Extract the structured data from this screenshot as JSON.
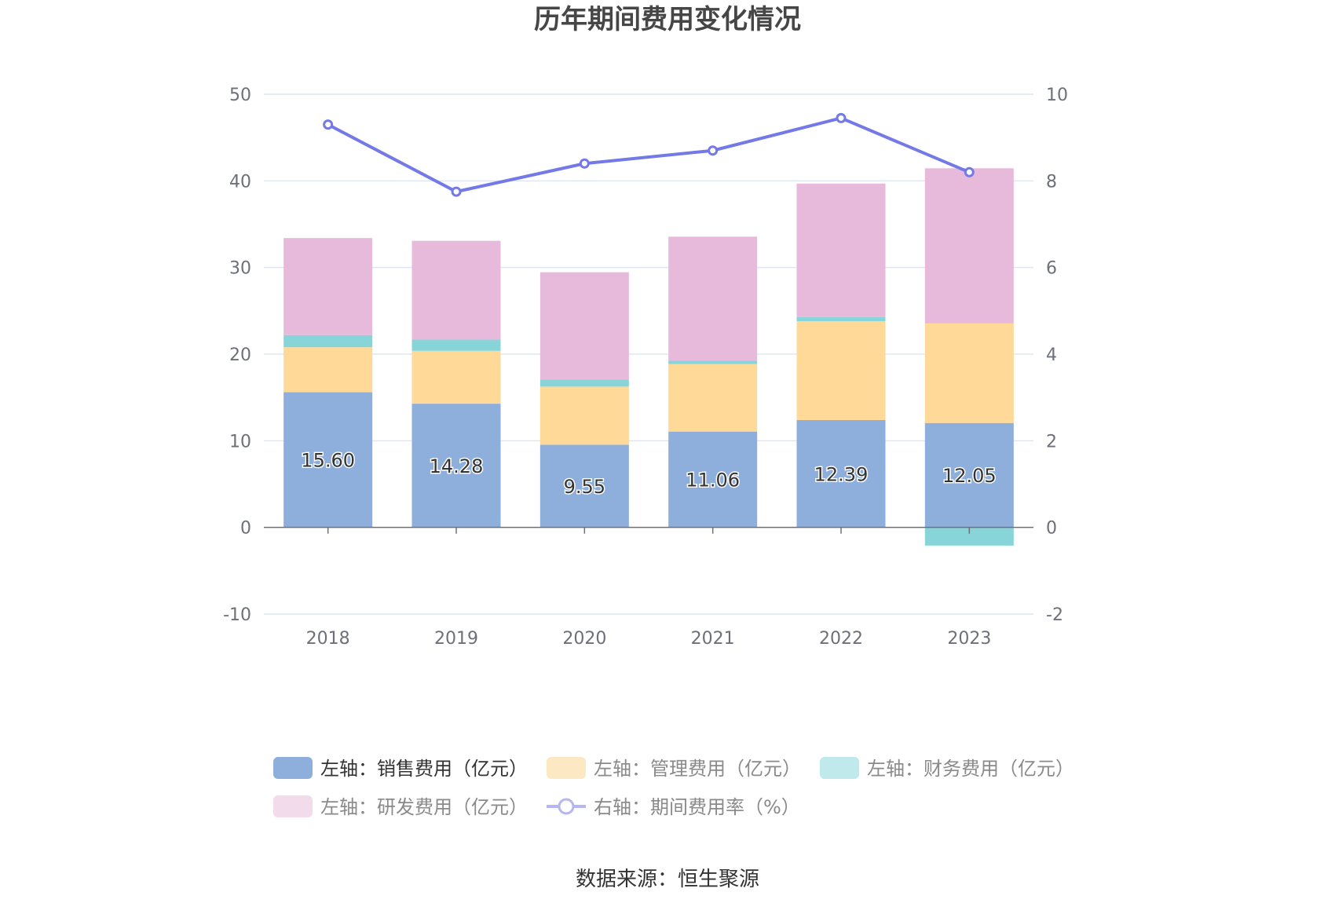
{
  "chart_data": {
    "type": "bar",
    "title": "历年期间费用变化情况",
    "categories": [
      "2018",
      "2019",
      "2020",
      "2021",
      "2022",
      "2023"
    ],
    "stacked": true,
    "left_axis": {
      "ylim": [
        -10,
        50
      ],
      "ticks": [
        "50",
        "40",
        "30",
        "20",
        "10",
        "0",
        "-10"
      ]
    },
    "right_axis": {
      "ylim": [
        -2,
        10
      ],
      "ticks": [
        "10",
        "8",
        "6",
        "4",
        "2",
        "0",
        "-2"
      ]
    },
    "series": [
      {
        "name": "左轴：销售费用（亿元）",
        "axis": "left",
        "color": "#8eaedb",
        "values": [
          15.6,
          14.28,
          9.55,
          11.06,
          12.39,
          12.05
        ],
        "labels": [
          "15.60",
          "14.28",
          "9.55",
          "11.06",
          "12.39",
          "12.05"
        ]
      },
      {
        "name": "左轴：管理费用（亿元）",
        "axis": "left",
        "color": "#fed998",
        "values": [
          5.2,
          6.1,
          6.7,
          7.8,
          11.4,
          11.5
        ]
      },
      {
        "name": "左轴：财务费用（亿元）",
        "axis": "left",
        "color": "#88d5d9",
        "values": [
          1.4,
          1.3,
          0.8,
          0.4,
          0.5,
          -2.1
        ]
      },
      {
        "name": "左轴：研发费用（亿元）",
        "axis": "left",
        "color": "#e7b9da",
        "values": [
          11.2,
          11.4,
          12.4,
          14.3,
          15.4,
          17.9
        ]
      },
      {
        "name": "右轴：期间费用率（%）",
        "axis": "right",
        "type": "line",
        "color": "#7379e6",
        "values": [
          9.3,
          7.75,
          8.4,
          8.7,
          9.45,
          8.2
        ]
      }
    ],
    "legend": [
      {
        "label": "左轴：销售费用（亿元）",
        "color": "#8eaedb",
        "kind": "rect",
        "dim": false
      },
      {
        "label": "左轴：管理费用（亿元）",
        "color": "#fde8c4",
        "kind": "rect",
        "dim": true
      },
      {
        "label": "左轴：财务费用（亿元）",
        "color": "#c0e9eb",
        "kind": "rect",
        "dim": true
      },
      {
        "label": "左轴：研发费用（亿元）",
        "color": "#f2dcec",
        "kind": "rect",
        "dim": true
      },
      {
        "label": "右轴：期间费用率（%）",
        "color": "#b4b7f1",
        "kind": "line",
        "dim": true
      }
    ],
    "legend_position": "bottom",
    "source": "数据来源：恒生聚源"
  }
}
